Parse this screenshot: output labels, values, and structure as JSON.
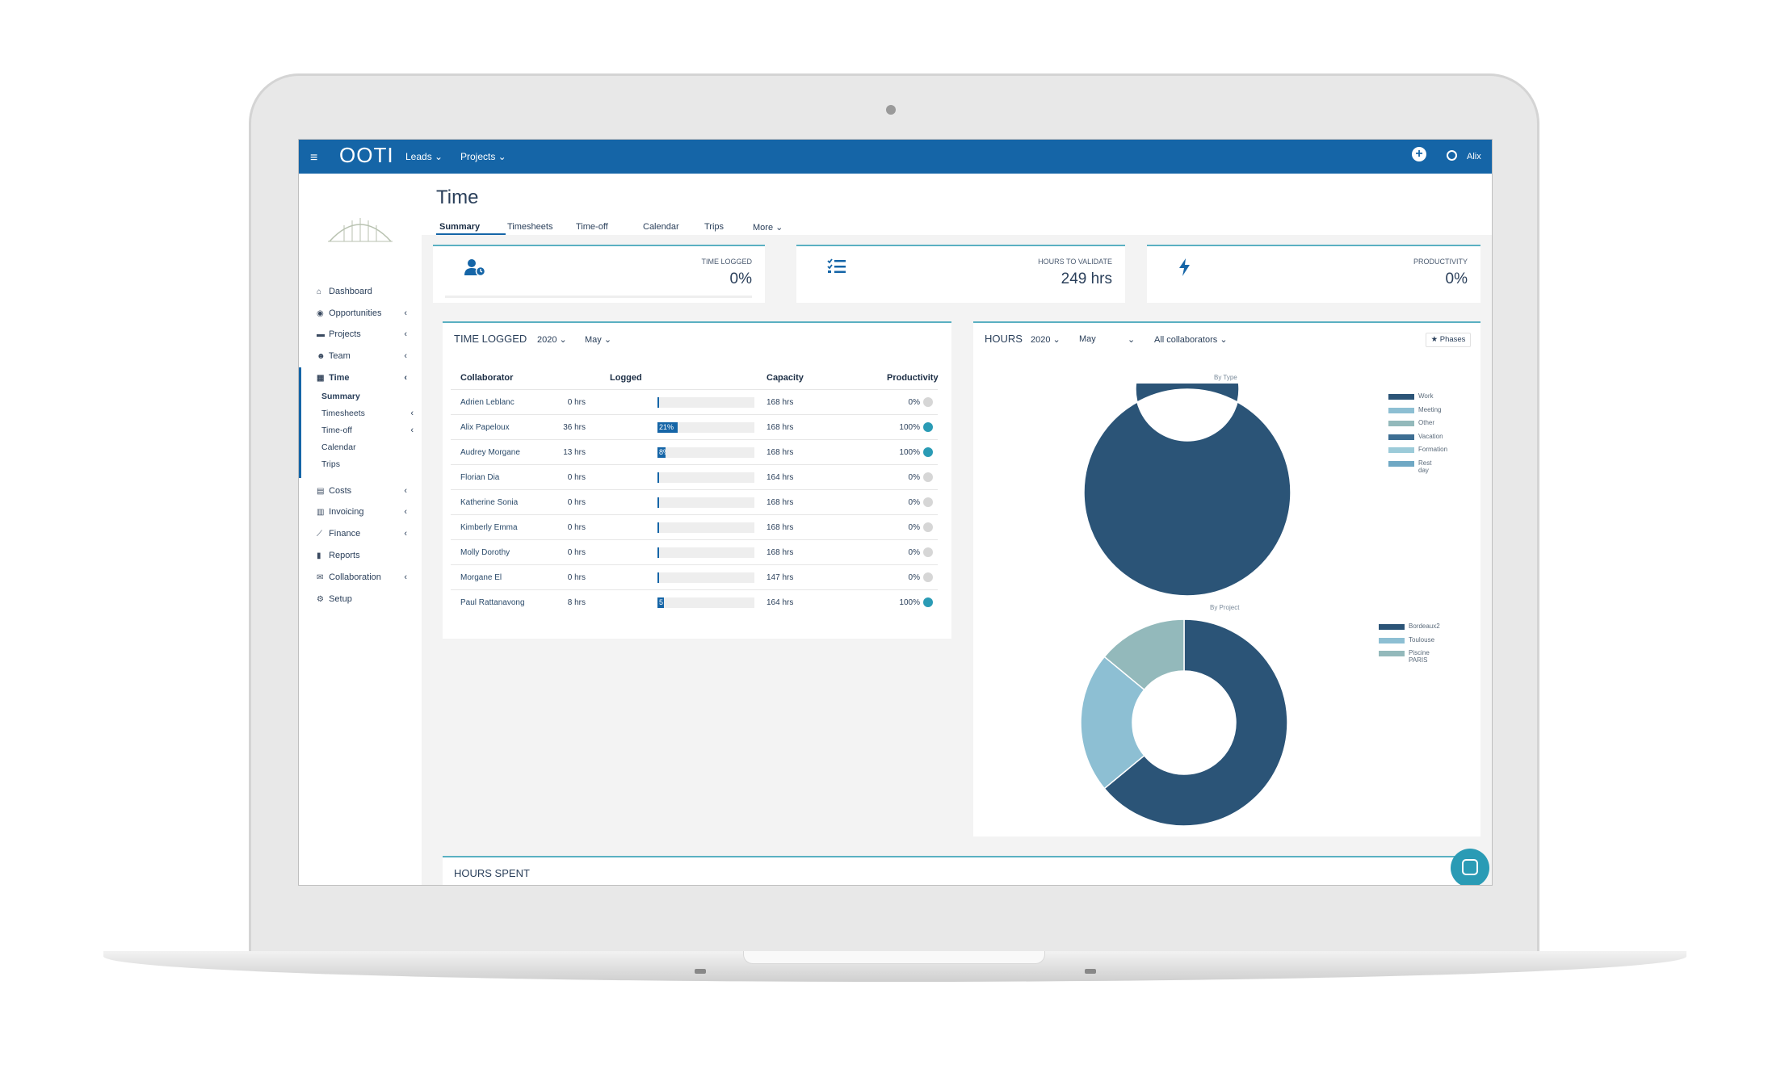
{
  "app": {
    "logo": "OOTI",
    "nav": [
      {
        "label": "Leads ⌄"
      },
      {
        "label": "Projects ⌄"
      }
    ],
    "user": "Alix"
  },
  "sidebar": {
    "items": [
      {
        "label": "Dashboard",
        "icon": "home-icon",
        "glyph": "⌂",
        "chevron": ""
      },
      {
        "label": "Opportunities",
        "icon": "eye-icon",
        "glyph": "◉",
        "chevron": "‹"
      },
      {
        "label": "Projects",
        "icon": "folder-icon",
        "glyph": "▬",
        "chevron": "‹"
      },
      {
        "label": "Team",
        "icon": "users-icon",
        "glyph": "☻",
        "chevron": "‹"
      },
      {
        "label": "Time",
        "icon": "calendar-icon",
        "glyph": "▦",
        "chevron": "‹"
      },
      {
        "label": "Costs",
        "icon": "receipt-icon",
        "glyph": "▤",
        "chevron": "‹"
      },
      {
        "label": "Invoicing",
        "icon": "invoice-icon",
        "glyph": "▥",
        "chevron": "‹"
      },
      {
        "label": "Finance",
        "icon": "chart-icon",
        "glyph": "⟋",
        "chevron": "‹"
      },
      {
        "label": "Reports",
        "icon": "file-icon",
        "glyph": "▮",
        "chevron": ""
      },
      {
        "label": "Collaboration",
        "icon": "chat-icon",
        "glyph": "✉",
        "chevron": "‹"
      },
      {
        "label": "Setup",
        "icon": "settings-icon",
        "glyph": "⚙",
        "chevron": ""
      }
    ],
    "time_sub": [
      {
        "label": "Summary",
        "chevron": ""
      },
      {
        "label": "Timesheets",
        "chevron": "‹"
      },
      {
        "label": "Time-off",
        "chevron": "‹"
      },
      {
        "label": "Calendar",
        "chevron": ""
      },
      {
        "label": "Trips",
        "chevron": ""
      }
    ]
  },
  "page": {
    "title": "Time",
    "tabs": [
      {
        "label": "Summary"
      },
      {
        "label": "Timesheets"
      },
      {
        "label": "Time-off"
      },
      {
        "label": "Calendar"
      },
      {
        "label": "Trips"
      },
      {
        "label": "More ⌄"
      }
    ]
  },
  "kpis": [
    {
      "label": "Time logged",
      "value": "0%",
      "icon": "user-clock-icon"
    },
    {
      "label": "Hours to validate",
      "value": "249 hrs",
      "icon": "checklist-icon"
    },
    {
      "label": "Productivity",
      "value": "0%",
      "icon": "bolt-icon"
    }
  ],
  "time_logged": {
    "title": "TIME LOGGED",
    "year": "2020 ⌄",
    "month": "May ⌄",
    "headers": {
      "collaborator": "Collaborator",
      "logged": "Logged",
      "capacity": "Capacity",
      "productivity": "Productivity"
    },
    "rows": [
      {
        "name": "Adrien Leblanc",
        "logged": "0 hrs",
        "bar_pct": 0,
        "bar_label": "",
        "capacity": "168 hrs",
        "productivity": "0%",
        "dot": "grey"
      },
      {
        "name": "Alix Papeloux",
        "logged": "36 hrs",
        "bar_pct": 21,
        "bar_label": "21%",
        "capacity": "168 hrs",
        "productivity": "100%",
        "dot": "blue"
      },
      {
        "name": "Audrey Morgane",
        "logged": "13 hrs",
        "bar_pct": 8,
        "bar_label": "8%",
        "capacity": "168 hrs",
        "productivity": "100%",
        "dot": "blue"
      },
      {
        "name": "Florian Dia",
        "logged": "0 hrs",
        "bar_pct": 0,
        "bar_label": "",
        "capacity": "164 hrs",
        "productivity": "0%",
        "dot": "grey"
      },
      {
        "name": "Katherine Sonia",
        "logged": "0 hrs",
        "bar_pct": 0,
        "bar_label": "",
        "capacity": "168 hrs",
        "productivity": "0%",
        "dot": "grey"
      },
      {
        "name": "Kimberly Emma",
        "logged": "0 hrs",
        "bar_pct": 0,
        "bar_label": "",
        "capacity": "168 hrs",
        "productivity": "0%",
        "dot": "grey"
      },
      {
        "name": "Molly Dorothy",
        "logged": "0 hrs",
        "bar_pct": 0,
        "bar_label": "",
        "capacity": "168 hrs",
        "productivity": "0%",
        "dot": "grey"
      },
      {
        "name": "Morgane El",
        "logged": "0 hrs",
        "bar_pct": 0,
        "bar_label": "",
        "capacity": "147 hrs",
        "productivity": "0%",
        "dot": "grey"
      },
      {
        "name": "Paul Rattanavong",
        "logged": "8 hrs",
        "bar_pct": 5,
        "bar_label": "5",
        "capacity": "164 hrs",
        "productivity": "100%",
        "dot": "blue"
      }
    ]
  },
  "hours": {
    "title": "HOURS",
    "year": "2020 ⌄",
    "month": "May",
    "month_chevron": "⌄",
    "collaborators": "All collaborators ⌄",
    "phases_button": "★ Phases",
    "colors": {
      "dark": "#2b5477",
      "light": "#8dbfd3",
      "teal": "#93b9bb"
    }
  },
  "chart_data": [
    {
      "type": "pie",
      "title": "By Type",
      "legend": [
        "Work",
        "Meeting",
        "Other",
        "Vacation",
        "Formation",
        "Rest day"
      ],
      "legend_colors": [
        "#2b5477",
        "#8dbfd3",
        "#93b9bb",
        "#3d6e93",
        "#9ccbd9",
        "#6fa8c4"
      ],
      "slices": [
        {
          "label": "Work",
          "value": 100,
          "color": "#2b5477"
        }
      ]
    },
    {
      "type": "pie",
      "title": "By Project",
      "legend": [
        "Bordeaux2",
        "Toulouse",
        "Piscine PARIS"
      ],
      "legend_colors": [
        "#2b5477",
        "#8dbfd3",
        "#93b9bb"
      ],
      "slices": [
        {
          "label": "Bordeaux2",
          "value": 64,
          "color": "#2b5477"
        },
        {
          "label": "Toulouse",
          "value": 22,
          "color": "#8dbfd3"
        },
        {
          "label": "Piscine PARIS",
          "value": 14,
          "color": "#93b9bb"
        }
      ]
    }
  ],
  "hours_spent": {
    "title": "HOURS SPENT"
  }
}
